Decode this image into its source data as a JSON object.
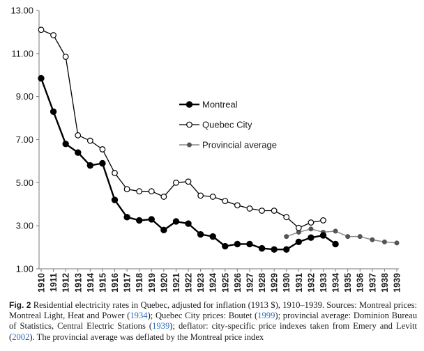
{
  "chart_data": {
    "type": "line",
    "title": "",
    "xlabel": "",
    "ylabel": "",
    "ylim": [
      1.0,
      13.0
    ],
    "yticks": [
      "1.00",
      "3.00",
      "5.00",
      "7.00",
      "9.00",
      "11.00",
      "13.00"
    ],
    "ytick_values": [
      1,
      3,
      5,
      7,
      9,
      11,
      13
    ],
    "x": [
      "1910",
      "1911",
      "1912",
      "1913",
      "1914",
      "1915",
      "1916",
      "1917",
      "1918",
      "1919",
      "1920",
      "1921",
      "1922",
      "1923",
      "1924",
      "1925",
      "1926",
      "1927",
      "1928",
      "1929",
      "1930",
      "1931",
      "1932",
      "1933",
      "1934",
      "1935",
      "1936",
      "1937",
      "1938",
      "1939"
    ],
    "legend_position": "center",
    "series": [
      {
        "name": "Montreal",
        "marker": "filled-circle",
        "color": "#000000",
        "values": [
          9.85,
          8.3,
          6.8,
          6.4,
          5.8,
          5.9,
          4.2,
          3.4,
          3.25,
          3.3,
          2.8,
          3.2,
          3.1,
          2.6,
          2.5,
          2.05,
          2.15,
          2.15,
          1.95,
          1.9,
          1.9,
          2.25,
          2.45,
          2.55,
          2.15,
          null,
          null,
          null,
          null,
          null
        ]
      },
      {
        "name": "Quebec City",
        "marker": "open-circle",
        "color": "#000000",
        "values": [
          12.1,
          11.85,
          10.85,
          7.2,
          6.95,
          6.55,
          5.45,
          4.7,
          4.6,
          4.6,
          4.35,
          5.0,
          5.05,
          4.4,
          4.35,
          4.15,
          3.95,
          3.8,
          3.7,
          3.7,
          3.4,
          2.9,
          3.15,
          3.25,
          null,
          null,
          null,
          null,
          null,
          null
        ]
      },
      {
        "name": "Provincial average",
        "marker": "small-gray-circle",
        "color": "#888888",
        "values": [
          null,
          null,
          null,
          null,
          null,
          null,
          null,
          null,
          null,
          null,
          null,
          null,
          null,
          null,
          null,
          null,
          null,
          null,
          null,
          null,
          2.5,
          2.7,
          2.85,
          2.7,
          2.75,
          2.5,
          2.5,
          2.35,
          2.25,
          2.2
        ]
      }
    ]
  },
  "caption": {
    "label": "Fig. 2",
    "text_1": "Residential electricity rates in Quebec, adjusted for inflation (1913 $), 1910–1939. Sources: Montreal prices: Montreal Light, Heat and Power (",
    "ref_1": "1934",
    "text_2": "); Quebec City prices: Boutet (",
    "ref_2": "1999",
    "text_3": "); provincial average: Dominion Bureau of Statistics, Central Electric Stations (",
    "ref_3": "1939",
    "text_4": "); deflator: city-specific price indexes taken from Emery and Levitt (",
    "ref_4": "2002",
    "text_5": "). The provincial average was deflated by the Montreal price index"
  }
}
